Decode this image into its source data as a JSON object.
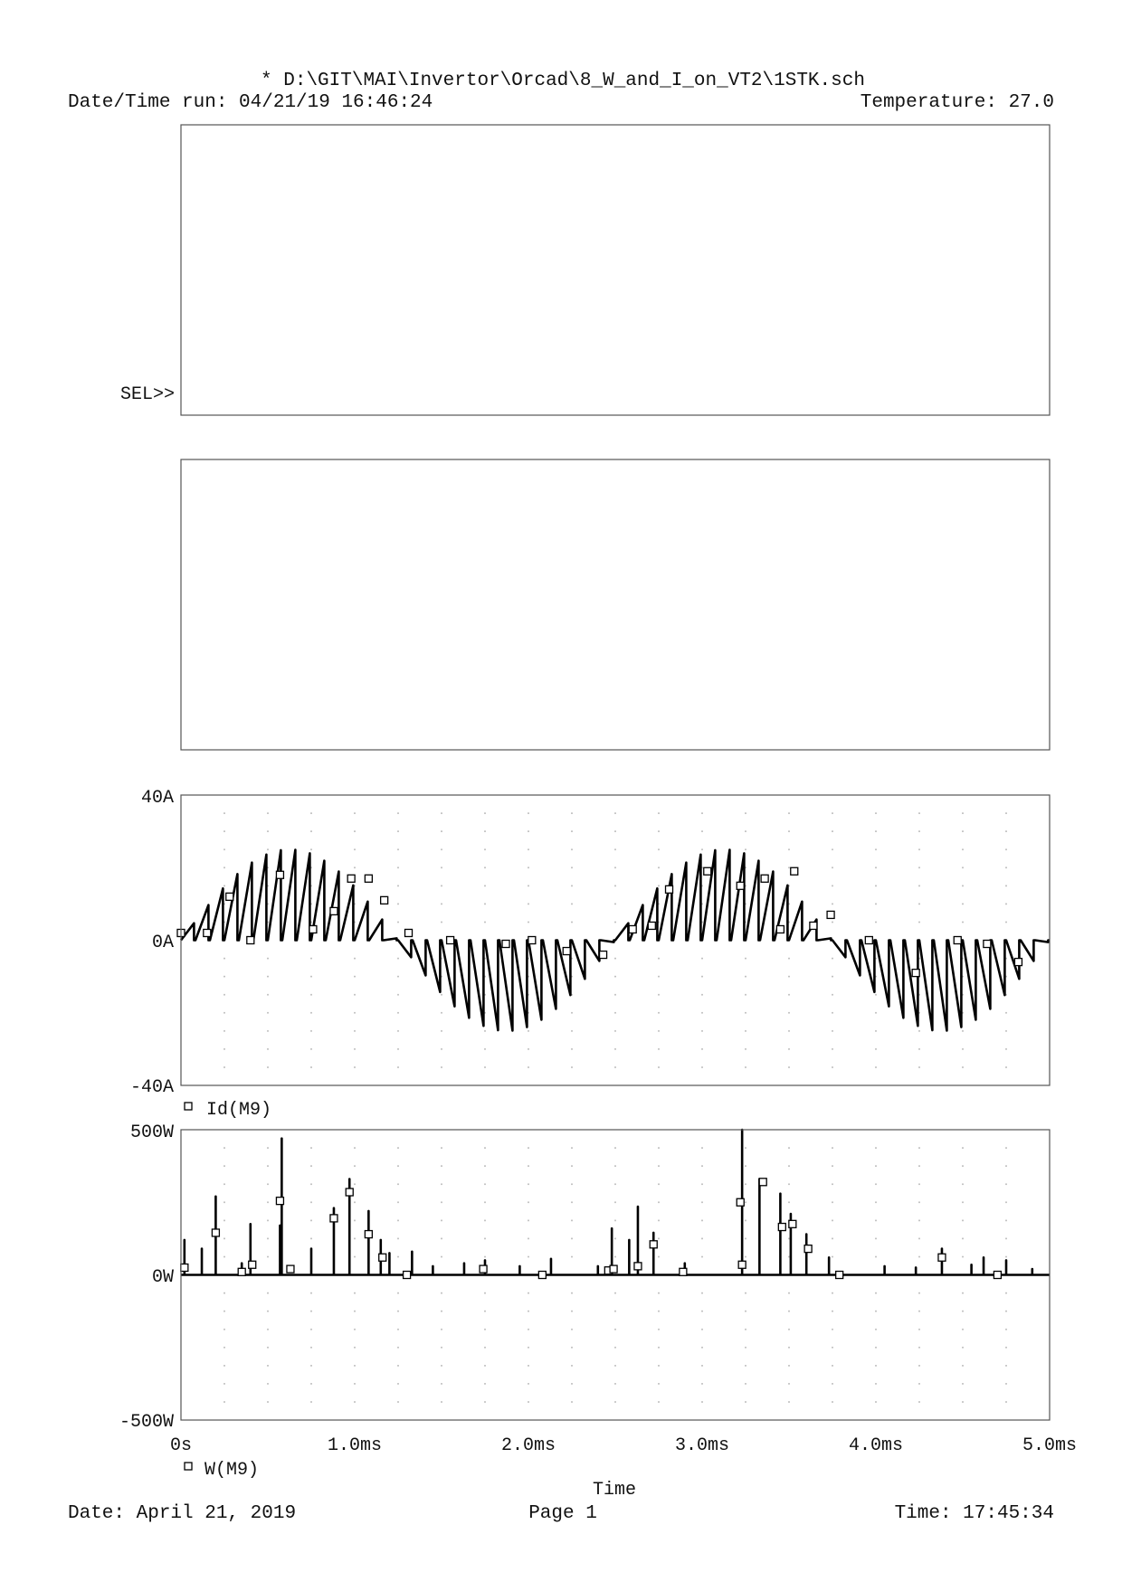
{
  "header": {
    "file_path": "* D:\\GIT\\MAI\\Invertor\\Orcad\\8_W_and_I_on_VT2\\1STK.sch",
    "date_time_run": "Date/Time run: 04/21/19 16:46:24",
    "temperature": "Temperature: 27.0"
  },
  "sel_marker": "SEL>>",
  "footer": {
    "date": "Date: April 21, 2019",
    "page": "Page 1",
    "time": "Time: 17:45:34"
  },
  "chart_data": [
    {
      "type": "line",
      "plot": "empty-plot-1",
      "series": []
    },
    {
      "type": "line",
      "plot": "empty-plot-2",
      "series": []
    },
    {
      "type": "line",
      "plot": "current-plot",
      "ylim": [
        -40,
        40
      ],
      "yunit": "A",
      "yticks": [
        "40A",
        "0A",
        "-40A"
      ],
      "grid": true,
      "legend": "Id(M9)",
      "envelope_peak_A": 25,
      "fundamental_period_ms": 2.5,
      "pwm_spikes_per_period": 30,
      "series": [
        {
          "name": "Id(M9)",
          "marker_points_ms_A": [
            [
              0.0,
              2
            ],
            [
              0.15,
              2
            ],
            [
              0.28,
              12
            ],
            [
              0.4,
              0
            ],
            [
              0.57,
              18
            ],
            [
              0.76,
              3
            ],
            [
              0.88,
              8
            ],
            [
              0.98,
              17
            ],
            [
              1.08,
              17
            ],
            [
              1.17,
              11
            ],
            [
              1.31,
              2
            ],
            [
              1.55,
              0
            ],
            [
              1.87,
              -1
            ],
            [
              2.02,
              0
            ],
            [
              2.22,
              -3
            ],
            [
              2.43,
              -4
            ],
            [
              2.6,
              3
            ],
            [
              2.71,
              4
            ],
            [
              2.81,
              14
            ],
            [
              3.03,
              19
            ],
            [
              3.22,
              15
            ],
            [
              3.36,
              17
            ],
            [
              3.45,
              3
            ],
            [
              3.53,
              19
            ],
            [
              3.64,
              4
            ],
            [
              3.74,
              7
            ],
            [
              3.96,
              0
            ],
            [
              4.23,
              -9
            ],
            [
              4.47,
              0
            ],
            [
              4.64,
              -1
            ],
            [
              4.82,
              -6
            ]
          ]
        }
      ]
    },
    {
      "type": "line",
      "plot": "power-plot",
      "ylim": [
        -500,
        500
      ],
      "yunit": "W",
      "yticks": [
        "500W",
        "0W",
        "-500W"
      ],
      "grid": true,
      "legend": "W(M9)",
      "x_label": "Time",
      "xticks": [
        "0s",
        "1.0ms",
        "2.0ms",
        "3.0ms",
        "4.0ms",
        "5.0ms"
      ],
      "xlim_ms": [
        0,
        5
      ],
      "series": [
        {
          "name": "W(M9)",
          "spikes_ms_W": [
            [
              0.02,
              120
            ],
            [
              0.12,
              90
            ],
            [
              0.2,
              270
            ],
            [
              0.35,
              40
            ],
            [
              0.4,
              175
            ],
            [
              0.57,
              170
            ],
            [
              0.58,
              470
            ],
            [
              0.75,
              90
            ],
            [
              0.88,
              230
            ],
            [
              0.97,
              330
            ],
            [
              1.08,
              220
            ],
            [
              1.15,
              120
            ],
            [
              1.2,
              75
            ],
            [
              1.33,
              80
            ],
            [
              1.45,
              30
            ],
            [
              1.63,
              40
            ],
            [
              1.75,
              50
            ],
            [
              1.95,
              30
            ],
            [
              2.13,
              55
            ],
            [
              2.4,
              30
            ],
            [
              2.48,
              160
            ],
            [
              2.58,
              120
            ],
            [
              2.63,
              235
            ],
            [
              2.72,
              145
            ],
            [
              2.9,
              40
            ],
            [
              3.23,
              500
            ],
            [
              3.33,
              330
            ],
            [
              3.45,
              280
            ],
            [
              3.51,
              210
            ],
            [
              3.6,
              140
            ],
            [
              3.73,
              60
            ],
            [
              4.05,
              30
            ],
            [
              4.23,
              25
            ],
            [
              4.38,
              90
            ],
            [
              4.55,
              35
            ],
            [
              4.62,
              60
            ],
            [
              4.75,
              50
            ],
            [
              4.9,
              20
            ]
          ],
          "marker_points_ms_W": [
            [
              0.02,
              25
            ],
            [
              0.2,
              145
            ],
            [
              0.35,
              10
            ],
            [
              0.41,
              35
            ],
            [
              0.57,
              255
            ],
            [
              0.63,
              20
            ],
            [
              0.88,
              195
            ],
            [
              0.97,
              285
            ],
            [
              1.08,
              140
            ],
            [
              1.16,
              60
            ],
            [
              1.3,
              0
            ],
            [
              1.74,
              20
            ],
            [
              2.08,
              0
            ],
            [
              2.46,
              15
            ],
            [
              2.49,
              20
            ],
            [
              2.63,
              30
            ],
            [
              2.72,
              105
            ],
            [
              2.89,
              10
            ],
            [
              3.22,
              250
            ],
            [
              3.23,
              35
            ],
            [
              3.35,
              320
            ],
            [
              3.46,
              165
            ],
            [
              3.52,
              175
            ],
            [
              3.61,
              90
            ],
            [
              3.79,
              0
            ],
            [
              4.38,
              60
            ],
            [
              4.7,
              0
            ]
          ]
        }
      ]
    }
  ]
}
